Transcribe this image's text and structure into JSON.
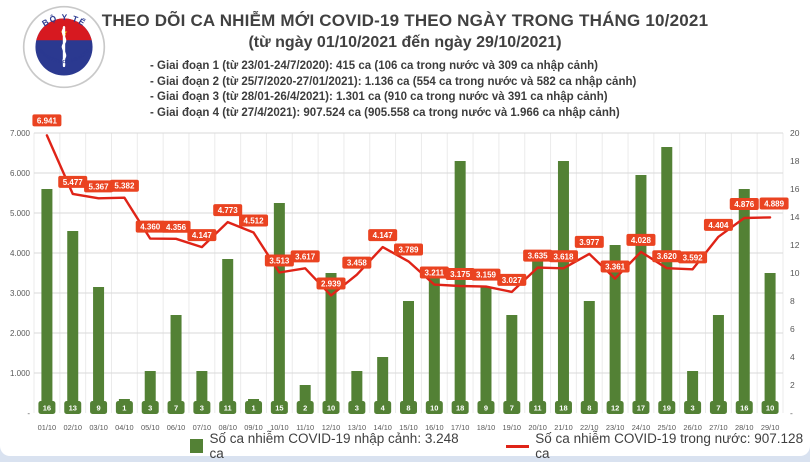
{
  "header": {
    "logo": {
      "top_text": "BỘ Y TẾ",
      "bottom_text": "MINISTRY OF HEALTH"
    },
    "title": "THEO DÕI CA NHIỄM MỚI COVID-19 THEO NGÀY TRONG THÁNG 10/2021",
    "subtitle": "(từ ngày 01/10/2021 đến ngày 29/10/2021)",
    "phases": [
      "- Giai đoạn 1 (từ 23/01-24/7/2020): 415 ca (106 ca trong nước và 309 ca nhập cảnh)",
      "- Giai đoạn 2 (từ 25/7/2020-27/01/2021): 1.136 ca (554 ca trong nước và 582 ca nhập cảnh)",
      "- Giai đoạn 3 (từ 28/01-26/4/2021): 1.301 ca (910 ca trong nước và 391 ca nhập cảnh)",
      "- Giai đoạn 4 (từ 27/4/2021): 907.524 ca (905.558 ca trong nước và 1.966 ca nhập cảnh)"
    ]
  },
  "chart_data": {
    "type": "bar+line combo",
    "categories": [
      "01/10",
      "02/10",
      "03/10",
      "04/10",
      "05/10",
      "06/10",
      "07/10",
      "08/10",
      "09/10",
      "10/10",
      "11/10",
      "12/10",
      "13/10",
      "14/10",
      "15/10",
      "16/10",
      "17/10",
      "18/10",
      "19/10",
      "20/10",
      "21/10",
      "22/10",
      "23/10",
      "24/10",
      "25/10",
      "26/10",
      "27/10",
      "28/10",
      "29/10"
    ],
    "series": [
      {
        "name": "Số ca nhiễm COVID-19 nhập cảnh",
        "type": "bar",
        "axis": "right",
        "color": "#538135",
        "values": [
          16,
          13,
          9,
          1,
          3,
          7,
          3,
          11,
          1,
          15,
          2,
          10,
          3,
          4,
          8,
          10,
          18,
          9,
          7,
          11,
          18,
          8,
          12,
          17,
          19,
          3,
          7,
          16,
          10
        ]
      },
      {
        "name": "Số ca nhiễm COVID-19 trong nước",
        "type": "line",
        "axis": "left",
        "color": "#df2317",
        "label_bg": "#ea4321",
        "values": [
          6941,
          5477,
          5367,
          5382,
          4360,
          4356,
          4147,
          4773,
          4512,
          3513,
          3617,
          2939,
          3458,
          4147,
          3789,
          3211,
          3175,
          3159,
          3027,
          3635,
          3618,
          3977,
          3361,
          4028,
          3620,
          3592,
          4404,
          4876,
          4889
        ]
      }
    ],
    "left_axis": {
      "min": 0,
      "max": 7000,
      "tick_step": 1000,
      "tick_labels": [
        "-",
        "1.000",
        "2.000",
        "3.000",
        "4.000",
        "5.000",
        "6.000",
        "7.000"
      ]
    },
    "right_axis": {
      "min": 0,
      "max": 20,
      "tick_step": 2,
      "tick_labels": [
        "-",
        "2",
        "4",
        "6",
        "8",
        "10",
        "12",
        "14",
        "16",
        "18",
        "20"
      ]
    },
    "grid": true,
    "legend_position": "bottom"
  },
  "legend": {
    "bars_label": "Số ca nhiễm COVID-19 nhập cảnh: 3.248 ca",
    "line_label": "Số ca nhiễm COVID-19 trong nước: 907.128 ca"
  },
  "colors": {
    "bar_green": "#538135",
    "line_red": "#df2317",
    "label_red": "#ea4321",
    "title_gray": "#414141",
    "axis_gray": "#595959",
    "grid_gray": "#d9d9d9",
    "footer_blue": "#d9e2f0",
    "logo_navy": "#2b3990",
    "logo_red": "#d71920",
    "logo_star_yellow": "#f5d216"
  }
}
